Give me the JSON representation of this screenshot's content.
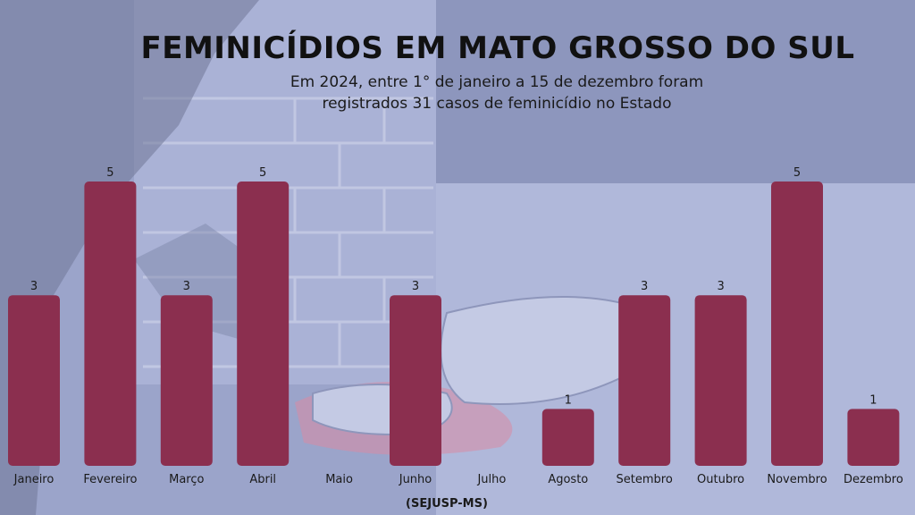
{
  "title": "FEMINICÍDIOS EM MATO GROSSO DO SUL",
  "subtitle_line1": "Em 2024, entre 1° de janeiro a 15 de dezembro foram",
  "subtitle_line2": "registrados 31 casos de feminicídio no Estado",
  "source": "(SEJUSP-MS)",
  "colors": {
    "bar": "#8b2f4f",
    "background": "#9aa3c9"
  },
  "chart_data": {
    "type": "bar",
    "title": "FEMINICÍDIOS EM MATO GROSSO DO SUL",
    "categories": [
      "Janeiro",
      "Fevereiro",
      "Março",
      "Abril",
      "Maio",
      "Junho",
      "Julho",
      "Agosto",
      "Setembro",
      "Outubro",
      "Novembro",
      "Dezembro"
    ],
    "values": [
      3,
      5,
      3,
      5,
      0,
      3,
      0,
      1,
      3,
      3,
      5,
      1
    ],
    "xlabel": "",
    "ylabel": "",
    "ylim": [
      0,
      5
    ],
    "grid": false,
    "legend": "none"
  }
}
